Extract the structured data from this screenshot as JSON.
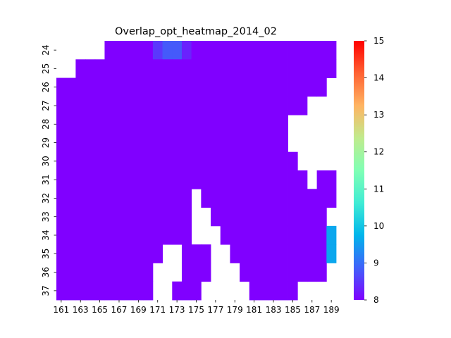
{
  "chart_data": {
    "type": "heatmap",
    "title": "Overlap_opt_heatmap_2014_02",
    "xlabel": "",
    "ylabel": "",
    "x": [
      161,
      162,
      163,
      164,
      165,
      166,
      167,
      168,
      169,
      170,
      171,
      172,
      173,
      174,
      175,
      176,
      177,
      178,
      179,
      180,
      181,
      182,
      183,
      184,
      185,
      186,
      187,
      188,
      189
    ],
    "x_tick_labels": [
      "161",
      "163",
      "165",
      "167",
      "169",
      "171",
      "173",
      "175",
      "177",
      "179",
      "181",
      "183",
      "185",
      "187",
      "189"
    ],
    "y": [
      24,
      25,
      26,
      27,
      28,
      29,
      30,
      31,
      32,
      33,
      34,
      35,
      36,
      37
    ],
    "y_tick_labels": [
      "24",
      "25",
      "26",
      "27",
      "28",
      "29",
      "30",
      "31",
      "32",
      "33",
      "34",
      "35",
      "36",
      "37"
    ],
    "colorbar": {
      "min": 8,
      "max": 15,
      "ticks": [
        "8",
        "9",
        "10",
        "11",
        "12",
        "13",
        "14",
        "15"
      ],
      "colormap": "rainbow",
      "colors": [
        "#8000ff",
        "#4062fa",
        "#00b5eb",
        "#40ecd4",
        "#80ffb4",
        "#c0eb8d",
        "#ffb462",
        "#ff6232",
        "#ff0000"
      ]
    },
    "values": [
      [
        null,
        null,
        null,
        null,
        null,
        8,
        8,
        8,
        8,
        8,
        8.5,
        8.8,
        8.8,
        8.3,
        8,
        8,
        8,
        8,
        8,
        8,
        8,
        8,
        8,
        8,
        8,
        8,
        8,
        8,
        8
      ],
      [
        null,
        null,
        8,
        8,
        8,
        8,
        8,
        8,
        8,
        8,
        8,
        8,
        8,
        8,
        8,
        8,
        8,
        8,
        8,
        8,
        8,
        8,
        8,
        8,
        8,
        8,
        8,
        8,
        8
      ],
      [
        8,
        8,
        8,
        8,
        8,
        8,
        8,
        8,
        8,
        8,
        8,
        8,
        8,
        8,
        8,
        8,
        8,
        8,
        8,
        8,
        8,
        8,
        8,
        8,
        8,
        8,
        8,
        8,
        null
      ],
      [
        8,
        8,
        8,
        8,
        8,
        8,
        8,
        8,
        8,
        8,
        8,
        8,
        8,
        8,
        8,
        8,
        8,
        8,
        8,
        8,
        8,
        8,
        8,
        8,
        8,
        8,
        null,
        null,
        null
      ],
      [
        8,
        8,
        8,
        8,
        8,
        8,
        8,
        8,
        8,
        8,
        8,
        8,
        8,
        8,
        8,
        8,
        8,
        8,
        8,
        8,
        8,
        8,
        8,
        8,
        null,
        null,
        null,
        null,
        null
      ],
      [
        8,
        8,
        8,
        8,
        8,
        8,
        8,
        8,
        8,
        8,
        8,
        8,
        8,
        8,
        8,
        8,
        8,
        8,
        8,
        8,
        8,
        8,
        8,
        8,
        null,
        null,
        null,
        null,
        null
      ],
      [
        8,
        8,
        8,
        8,
        8,
        8,
        8,
        8,
        8,
        8,
        8,
        8,
        8,
        8,
        8,
        8,
        8,
        8,
        8,
        8,
        8,
        8,
        8,
        8,
        8,
        null,
        null,
        null,
        null
      ],
      [
        8,
        8,
        8,
        8,
        8,
        8,
        8,
        8,
        8,
        8,
        8,
        8,
        8,
        8,
        8,
        8,
        8,
        8,
        8,
        8,
        8,
        8,
        8,
        8,
        8,
        8,
        null,
        8,
        8
      ],
      [
        8,
        8,
        8,
        8,
        8,
        8,
        8,
        8,
        8,
        8,
        8,
        8,
        8,
        8,
        null,
        8,
        8,
        8,
        8,
        8,
        8,
        8,
        8,
        8,
        8,
        8,
        8,
        8,
        8
      ],
      [
        8,
        8,
        8,
        8,
        8,
        8,
        8,
        8,
        8,
        8,
        8,
        8,
        8,
        8,
        null,
        null,
        8,
        8,
        8,
        8,
        8,
        8,
        8,
        8,
        8,
        8,
        8,
        8,
        null
      ],
      [
        8,
        8,
        8,
        8,
        8,
        8,
        8,
        8,
        8,
        8,
        8,
        8,
        8,
        8,
        null,
        null,
        null,
        8,
        8,
        8,
        8,
        8,
        8,
        8,
        8,
        8,
        8,
        8,
        9.6
      ],
      [
        8,
        8,
        8,
        8,
        8,
        8,
        8,
        8,
        8,
        8,
        8,
        null,
        null,
        8,
        8,
        8,
        null,
        null,
        8,
        8,
        8,
        8,
        8,
        8,
        8,
        8,
        8,
        8,
        9.6
      ],
      [
        8,
        8,
        8,
        8,
        8,
        8,
        8,
        8,
        8,
        8,
        null,
        null,
        null,
        8,
        8,
        8,
        null,
        null,
        null,
        8,
        8,
        8,
        8,
        8,
        8,
        8,
        8,
        8,
        null
      ],
      [
        8,
        8,
        8,
        8,
        8,
        8,
        8,
        8,
        8,
        8,
        null,
        null,
        8,
        8,
        8,
        null,
        null,
        null,
        null,
        null,
        8,
        8,
        8,
        8,
        8,
        null,
        null,
        null,
        null
      ]
    ]
  }
}
